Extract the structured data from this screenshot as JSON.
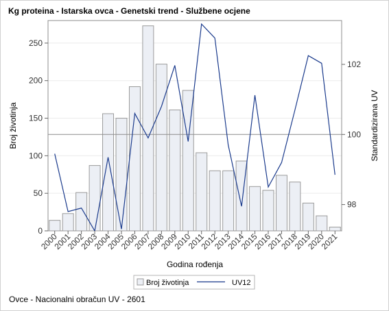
{
  "title": "Kg proteina - Istarska ovca - Genetski trend - Službene ocjene",
  "footnote": "Ovce - Nacionalni obračun UV - 2601",
  "chart_data": {
    "type": "bar+line",
    "xlabel": "Godina rođenja",
    "ylabel_left": "Broj životinja",
    "ylabel_right": "Standardizirana UV",
    "categories": [
      "2000",
      "2001",
      "2002",
      "2003",
      "2004",
      "2005",
      "2006",
      "2007",
      "2008",
      "2009",
      "2010",
      "2011",
      "2012",
      "2013",
      "2014",
      "2015",
      "2016",
      "2017",
      "2018",
      "2019",
      "2020",
      "2021"
    ],
    "left_axis": {
      "range": [
        0,
        280
      ],
      "ticks": [
        0,
        50,
        100,
        150,
        200,
        250
      ]
    },
    "right_axis": {
      "range": [
        97.25,
        103.25
      ],
      "ticks": [
        98,
        100,
        102
      ],
      "reference_line": 100
    },
    "series": [
      {
        "name": "Broj životinja",
        "type": "bar",
        "values": [
          14,
          23,
          51,
          87,
          156,
          150,
          192,
          273,
          222,
          161,
          187,
          104,
          80,
          80,
          93,
          59,
          54,
          74,
          65,
          37,
          20,
          5
        ],
        "color": "#eceff5",
        "stroke": "#9a9a9a"
      },
      {
        "name": "UV12",
        "type": "line",
        "axis": "right",
        "values": [
          99.45,
          97.8,
          97.9,
          97.25,
          99.35,
          97.3,
          100.6,
          99.9,
          100.8,
          101.97,
          99.8,
          103.15,
          102.75,
          99.7,
          97.95,
          101.12,
          98.5,
          99.2,
          100.7,
          102.25,
          102.03,
          98.85
        ],
        "color": "#1a3a8c"
      }
    ],
    "legend_position": "bottom",
    "grid": true
  }
}
